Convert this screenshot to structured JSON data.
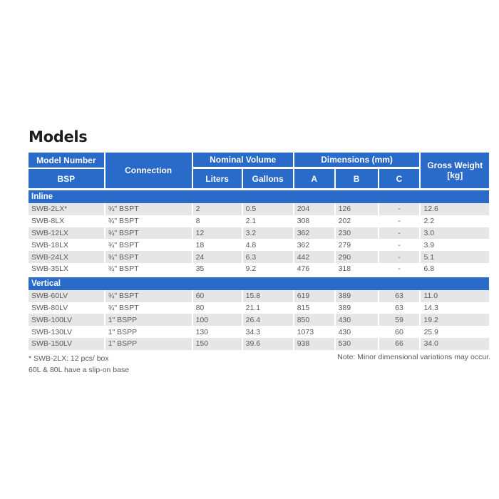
{
  "title": "Models",
  "headers": {
    "model_number": "Model Number",
    "bsp": "BSP",
    "connection": "Connection",
    "nominal_volume": "Nominal Volume",
    "liters": "Liters",
    "gallons": "Gallons",
    "dimensions": "Dimensions (mm)",
    "a": "A",
    "b": "B",
    "c": "C",
    "gross_weight": "Gross Weight",
    "gross_weight_unit": "[kg]"
  },
  "groups": [
    {
      "label": "Inline",
      "rows": [
        [
          "SWB-2LX*",
          "¾\" BSPT",
          "2",
          "0.5",
          "204",
          "126",
          "-",
          "12.6"
        ],
        [
          "SWB-8LX",
          "¾\" BSPT",
          "8",
          "2.1",
          "308",
          "202",
          "-",
          "2.2"
        ],
        [
          "SWB-12LX",
          "¾\" BSPT",
          "12",
          "3.2",
          "362",
          "230",
          "-",
          "3.0"
        ],
        [
          "SWB-18LX",
          "¾\" BSPT",
          "18",
          "4.8",
          "362",
          "279",
          "-",
          "3.9"
        ],
        [
          "SWB-24LX",
          "¾\" BSPT",
          "24",
          "6.3",
          "442",
          "290",
          "-",
          "5.1"
        ],
        [
          "SWB-35LX",
          "¾\" BSPT",
          "35",
          "9.2",
          "476",
          "318",
          "-",
          "6.8"
        ]
      ]
    },
    {
      "label": "Vertical",
      "rows": [
        [
          "SWB-60LV",
          "¾\" BSPT",
          "60",
          "15.8",
          "619",
          "389",
          "63",
          "11.0"
        ],
        [
          "SWB-80LV",
          "¾\" BSPT",
          "80",
          "21.1",
          "815",
          "389",
          "63",
          "14.3"
        ],
        [
          "SWB-100LV",
          "1\" BSPP",
          "100",
          "26.4",
          "850",
          "430",
          "59",
          "19.2"
        ],
        [
          "SWB-130LV",
          "1\" BSPP",
          "130",
          "34.3",
          "1073",
          "430",
          "60",
          "25.9"
        ],
        [
          "SWB-150LV",
          "1\" BSPP",
          "150",
          "39.6",
          "938",
          "530",
          "66",
          "34.0"
        ]
      ]
    }
  ],
  "footnotes": [
    "* SWB-2LX: 12 pcs/ box",
    "60L & 80L have a slip-on base"
  ],
  "note": "Note: Minor dimensional variations may occur.",
  "colors": {
    "header_blue": "#2a6ac9",
    "row_shade": "#e6e6e6"
  }
}
